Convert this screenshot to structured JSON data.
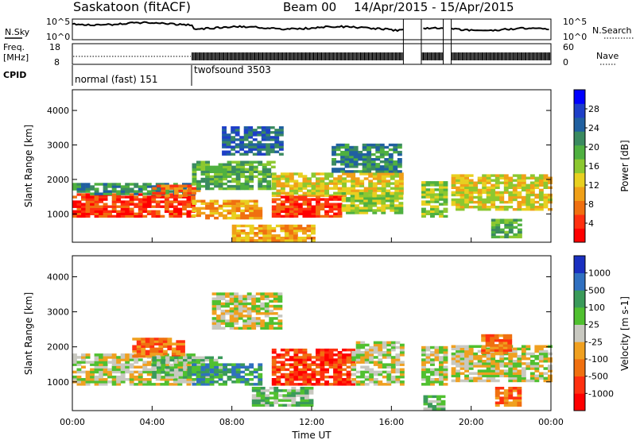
{
  "header": {
    "station": "Saskatoon (fitACF)",
    "beam": "Beam 00",
    "date_range": "14/Apr/2015 - 15/Apr/2015"
  },
  "top_panels": {
    "nsky_label": "N.Sky",
    "nsearch_label": "N.Search",
    "noise_ticks": [
      "10^5",
      "10^0"
    ],
    "freq_label_line1": "Freq.",
    "freq_label_line2": "[MHz]",
    "freq_ticks": [
      "18",
      "8"
    ],
    "nave_label": "Nave",
    "nave_ticks": [
      "60",
      "0"
    ],
    "cpid_label": "CPID",
    "cpid_modes": [
      {
        "label": "normal (fast) 151",
        "start_hour": 0,
        "end_hour": 6
      },
      {
        "label": "twofsound 3503",
        "start_hour": 6,
        "end_hour": 24
      }
    ]
  },
  "x_axis": {
    "label": "Time UT",
    "tick_labels": [
      "00:00",
      "04:00",
      "08:00",
      "12:00",
      "16:00",
      "20:00",
      "00:00"
    ],
    "range_hours": [
      0,
      24
    ]
  },
  "chart_data": [
    {
      "type": "heatmap",
      "name": "power",
      "ylabel": "Slant Range [km]",
      "y_ticks": [
        1000,
        2000,
        3000,
        4000
      ],
      "ylim": [
        180,
        4600
      ],
      "xlim": [
        0,
        24
      ],
      "colorbar": {
        "label": "Power [dB]",
        "ticks": [
          "4",
          "8",
          "12",
          "16",
          "20",
          "24",
          "28"
        ],
        "colors": [
          "#0000ff",
          "#1e3fc8",
          "#2060a0",
          "#3a8a60",
          "#4fb040",
          "#8cc830",
          "#e8d020",
          "#f0a018",
          "#f07010",
          "#ff3010",
          "#ff0000"
        ]
      },
      "regions": [
        {
          "t0": 0.0,
          "t1": 6.0,
          "r0": 900,
          "r1": 1550,
          "level": 9
        },
        {
          "t0": 0.0,
          "t1": 6.0,
          "r0": 1550,
          "r1": 1900,
          "level": 3
        },
        {
          "t0": 4.0,
          "t1": 6.3,
          "r0": 1500,
          "r1": 1800,
          "level": 8
        },
        {
          "t0": 6.0,
          "t1": 10.0,
          "r0": 1700,
          "r1": 2500,
          "level": 4
        },
        {
          "t0": 6.0,
          "t1": 9.5,
          "r0": 850,
          "r1": 1400,
          "level": 7
        },
        {
          "t0": 7.5,
          "t1": 10.5,
          "r0": 2700,
          "r1": 3500,
          "level": 2
        },
        {
          "t0": 10.0,
          "t1": 16.5,
          "r0": 1500,
          "r1": 2200,
          "level": 6
        },
        {
          "t0": 10.0,
          "t1": 13.5,
          "r0": 900,
          "r1": 1500,
          "level": 9
        },
        {
          "t0": 13.5,
          "t1": 16.5,
          "r0": 1000,
          "r1": 1600,
          "level": 5
        },
        {
          "t0": 8.0,
          "t1": 12.0,
          "r0": 200,
          "r1": 650,
          "level": 7
        },
        {
          "t0": 13.0,
          "t1": 16.5,
          "r0": 2200,
          "r1": 3000,
          "level": 3
        },
        {
          "t0": 17.5,
          "t1": 18.6,
          "r0": 900,
          "r1": 1900,
          "level": 5
        },
        {
          "t0": 19.0,
          "t1": 24.0,
          "r0": 1100,
          "r1": 2100,
          "level": 6
        },
        {
          "t0": 21.0,
          "t1": 22.5,
          "r0": 300,
          "r1": 800,
          "level": 4
        }
      ]
    },
    {
      "type": "heatmap",
      "name": "velocity",
      "ylabel": "Slant Range [km]",
      "y_ticks": [
        1000,
        2000,
        3000,
        4000
      ],
      "ylim": [
        180,
        4600
      ],
      "xlim": [
        0,
        24
      ],
      "colorbar": {
        "label": "Velocity [m s-1]",
        "ticks": [
          "1000",
          "500",
          "100",
          "25",
          "-25",
          "-100",
          "-500",
          "-1000"
        ],
        "colors": [
          "#1a30c0",
          "#3070c0",
          "#3a9a5a",
          "#50c030",
          "#c8c8c0",
          "#f0a020",
          "#f07010",
          "#ff3010",
          "#ff0000"
        ]
      },
      "regions": [
        {
          "t0": 0.0,
          "t1": 6.0,
          "r0": 900,
          "r1": 1800,
          "level": 4
        },
        {
          "t0": 3.0,
          "t1": 5.5,
          "r0": 1700,
          "r1": 2200,
          "level": 6
        },
        {
          "t0": 4.0,
          "t1": 7.5,
          "r0": 1100,
          "r1": 1700,
          "level": 3
        },
        {
          "t0": 6.0,
          "t1": 9.5,
          "r0": 900,
          "r1": 1500,
          "level": 2
        },
        {
          "t0": 7.0,
          "t1": 10.5,
          "r0": 2500,
          "r1": 3500,
          "level": 4
        },
        {
          "t0": 10.0,
          "t1": 14.0,
          "r0": 900,
          "r1": 1900,
          "level": 7
        },
        {
          "t0": 14.0,
          "t1": 16.5,
          "r0": 900,
          "r1": 2100,
          "level": 4
        },
        {
          "t0": 9.0,
          "t1": 12.0,
          "r0": 300,
          "r1": 800,
          "level": 3
        },
        {
          "t0": 17.5,
          "t1": 18.6,
          "r0": 900,
          "r1": 2000,
          "level": 4
        },
        {
          "t0": 17.6,
          "t1": 18.5,
          "r0": 200,
          "r1": 600,
          "level": 3
        },
        {
          "t0": 19.0,
          "t1": 24.0,
          "r0": 1000,
          "r1": 2000,
          "level": 4
        },
        {
          "t0": 20.5,
          "t1": 22.0,
          "r0": 1800,
          "r1": 2300,
          "level": 6
        },
        {
          "t0": 21.2,
          "t1": 22.3,
          "r0": 300,
          "r1": 800,
          "level": 6
        }
      ]
    }
  ]
}
